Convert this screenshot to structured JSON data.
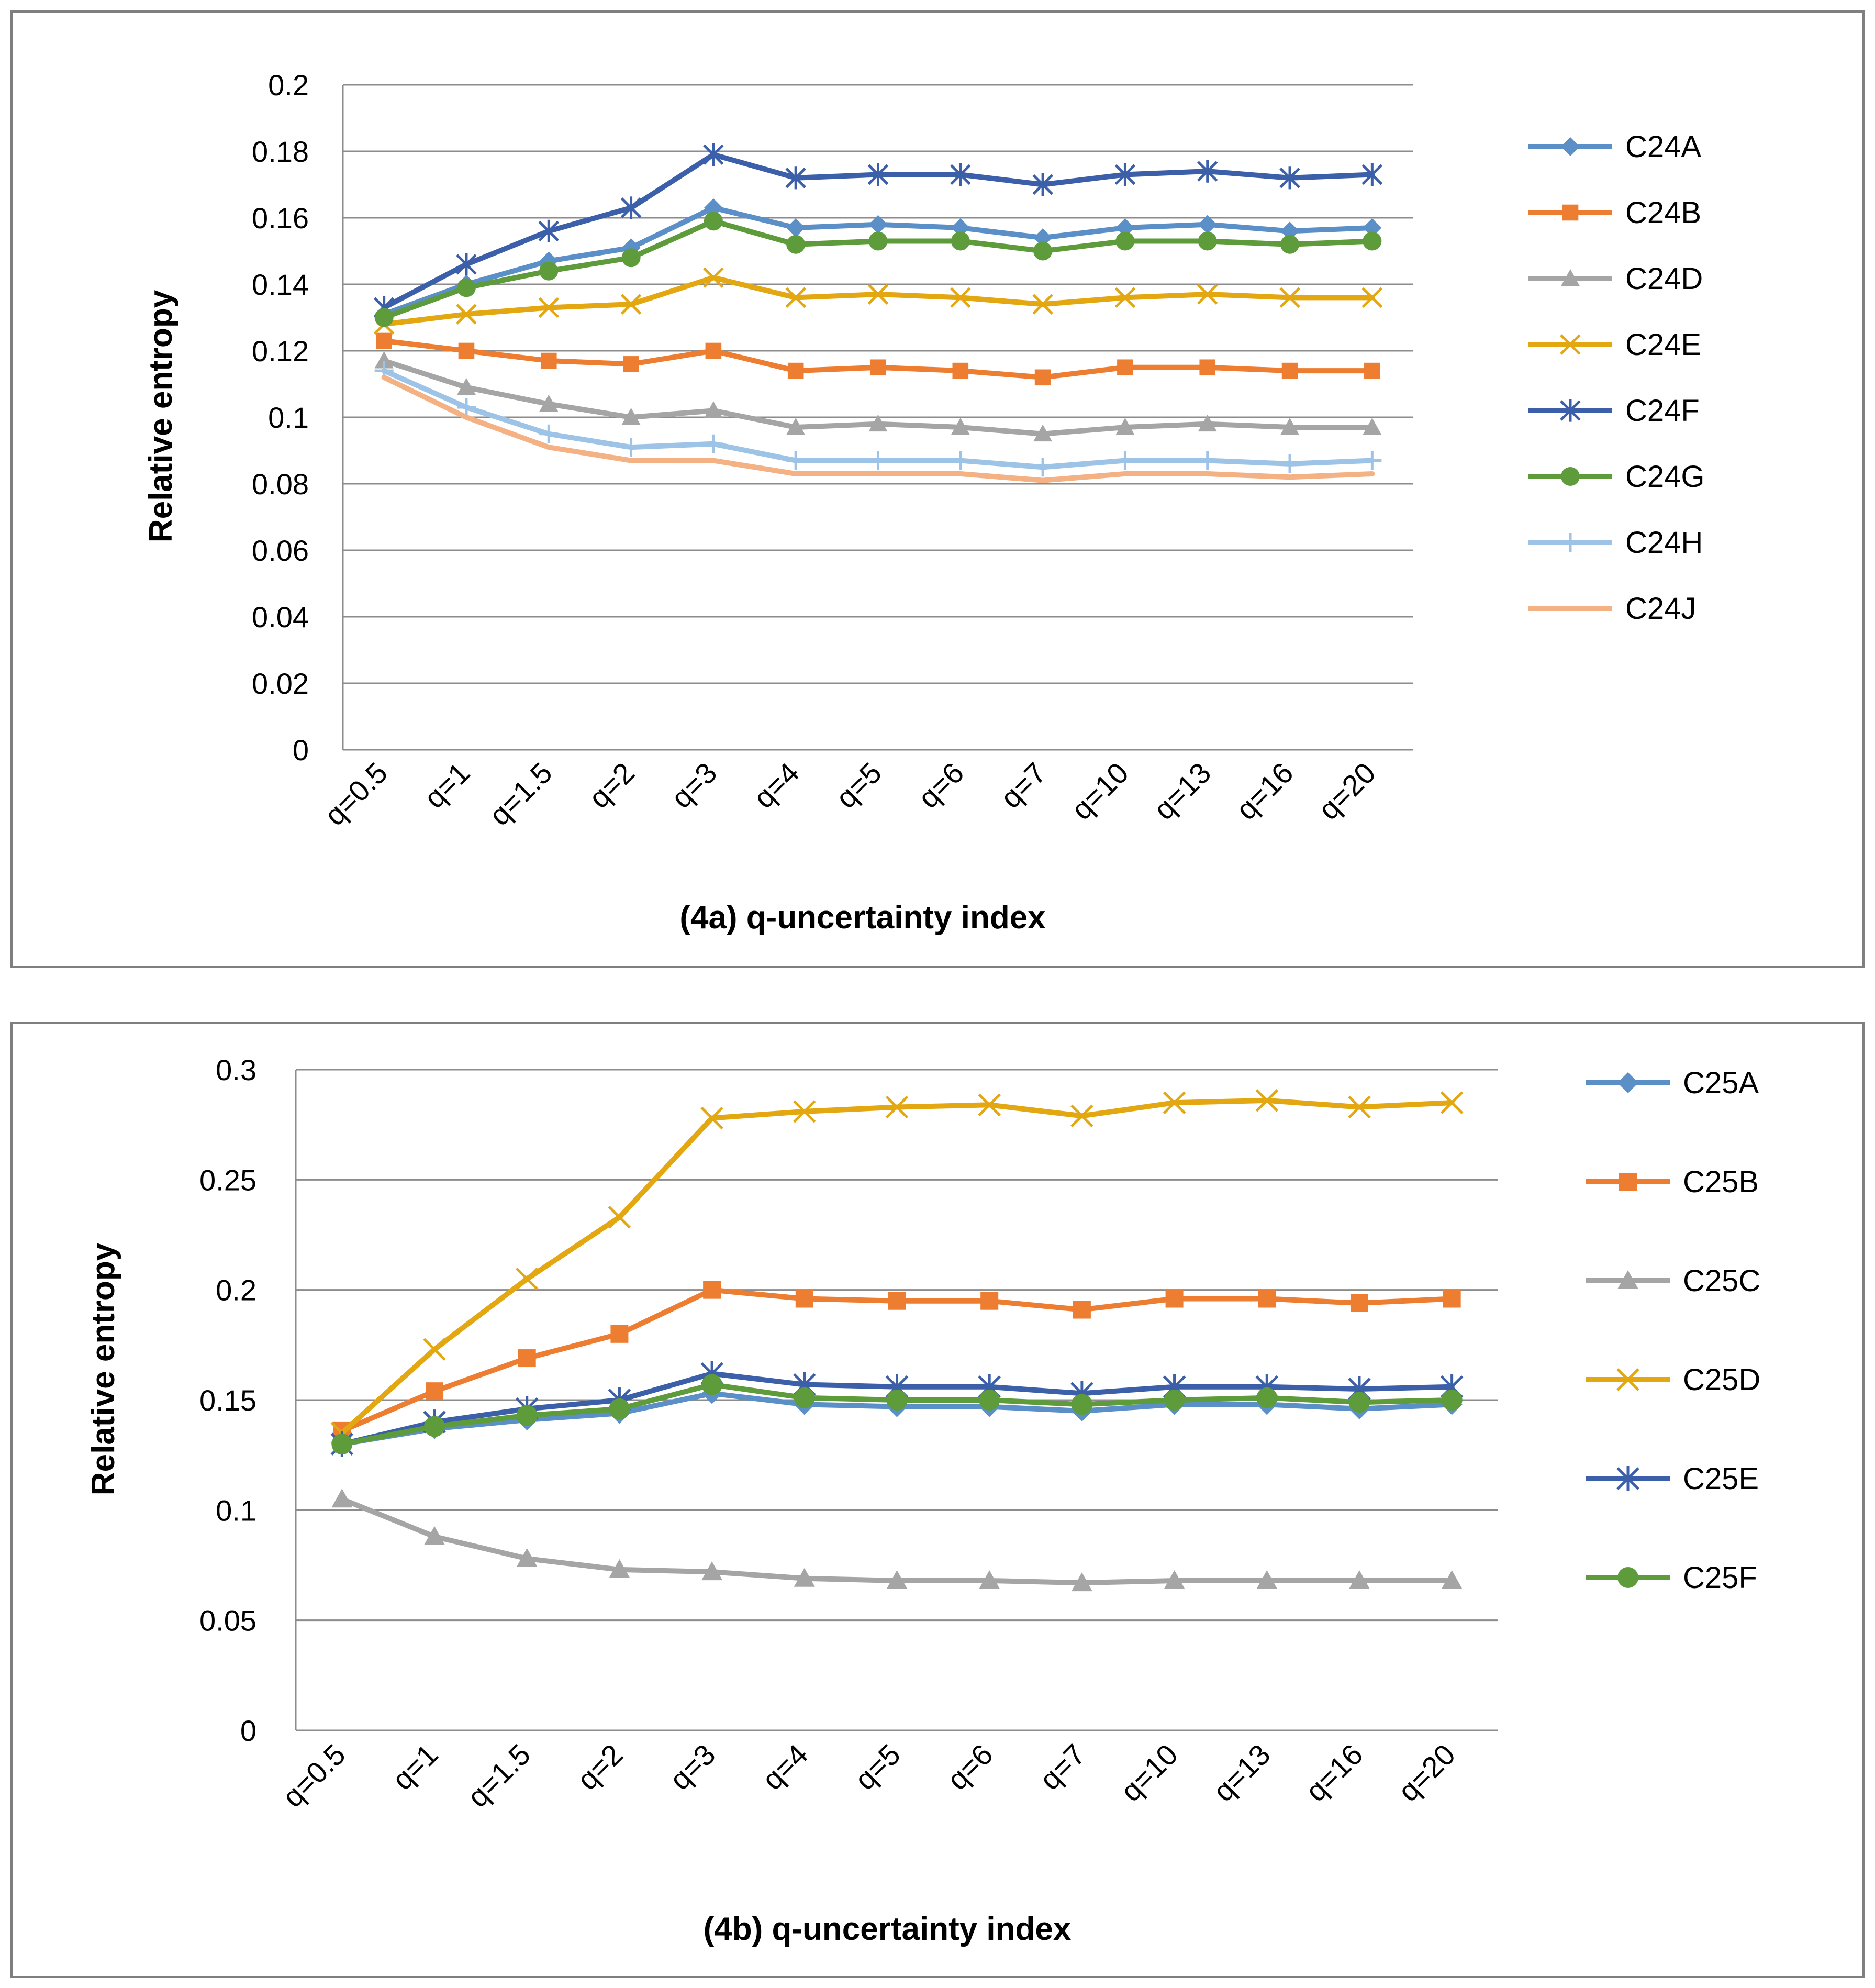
{
  "chart_data": [
    {
      "type": "line",
      "title": "",
      "xlabel": "(4a) q-uncertainty index",
      "ylabel": "Relative entropy",
      "ylim": [
        0,
        0.2
      ],
      "yticks": [
        "0",
        "0.02",
        "0.04",
        "0.06",
        "0.08",
        "0.1",
        "0.12",
        "0.14",
        "0.16",
        "0.18",
        "0.2"
      ],
      "ytick_values": [
        0,
        0.02,
        0.04,
        0.06,
        0.08,
        0.1,
        0.12,
        0.14,
        0.16,
        0.18,
        0.2
      ],
      "grid": true,
      "legend_position": "right",
      "categories": [
        "q=0.5",
        "q=1",
        "q=1.5",
        "q=2",
        "q=3",
        "q=4",
        "q=5",
        "q=6",
        "q=7",
        "q=10",
        "q=13",
        "q=16",
        "q=20"
      ],
      "series": [
        {
          "name": "C24A",
          "color": "#5B8FC7",
          "marker": "diamond",
          "values": [
            0.131,
            0.14,
            0.147,
            0.151,
            0.163,
            0.157,
            0.158,
            0.157,
            0.154,
            0.157,
            0.158,
            0.156,
            0.157
          ]
        },
        {
          "name": "C24B",
          "color": "#ED7D31",
          "marker": "square",
          "values": [
            0.123,
            0.12,
            0.117,
            0.116,
            0.12,
            0.114,
            0.115,
            0.114,
            0.112,
            0.115,
            0.115,
            0.114,
            0.114
          ]
        },
        {
          "name": "C24D",
          "color": "#A5A5A5",
          "marker": "triangle",
          "values": [
            0.117,
            0.109,
            0.104,
            0.1,
            0.102,
            0.097,
            0.098,
            0.097,
            0.095,
            0.097,
            0.098,
            0.097,
            0.097
          ]
        },
        {
          "name": "C24E",
          "color": "#E3A712",
          "marker": "x",
          "values": [
            0.128,
            0.131,
            0.133,
            0.134,
            0.142,
            0.136,
            0.137,
            0.136,
            0.134,
            0.136,
            0.137,
            0.136,
            0.136
          ]
        },
        {
          "name": "C24F",
          "color": "#3B5FA8",
          "marker": "star",
          "values": [
            0.133,
            0.146,
            0.156,
            0.163,
            0.179,
            0.172,
            0.173,
            0.173,
            0.17,
            0.173,
            0.174,
            0.172,
            0.173
          ]
        },
        {
          "name": "C24G",
          "color": "#5E9B3A",
          "marker": "circle",
          "values": [
            0.13,
            0.139,
            0.144,
            0.148,
            0.159,
            0.152,
            0.153,
            0.153,
            0.15,
            0.153,
            0.153,
            0.152,
            0.153
          ]
        },
        {
          "name": "C24H",
          "color": "#9DC3E6",
          "marker": "plus",
          "values": [
            0.114,
            0.103,
            0.095,
            0.091,
            0.092,
            0.087,
            0.087,
            0.087,
            0.085,
            0.087,
            0.087,
            0.086,
            0.087
          ]
        },
        {
          "name": "C24J",
          "color": "#F4B183",
          "marker": "none",
          "values": [
            0.112,
            0.1,
            0.091,
            0.087,
            0.087,
            0.083,
            0.083,
            0.083,
            0.081,
            0.083,
            0.083,
            0.082,
            0.083
          ]
        }
      ]
    },
    {
      "type": "line",
      "title": "",
      "xlabel": "(4b) q-uncertainty index",
      "ylabel": "Relative entropy",
      "ylim": [
        0,
        0.3
      ],
      "yticks": [
        "0",
        "0.05",
        "0.1",
        "0.15",
        "0.2",
        "0.25",
        "0.3"
      ],
      "ytick_values": [
        0,
        0.05,
        0.1,
        0.15,
        0.2,
        0.25,
        0.3
      ],
      "grid": true,
      "legend_position": "right",
      "categories": [
        "q=0.5",
        "q=1",
        "q=1.5",
        "q=2",
        "q=3",
        "q=4",
        "q=5",
        "q=6",
        "q=7",
        "q=10",
        "q=13",
        "q=16",
        "q=20"
      ],
      "series": [
        {
          "name": "C25A",
          "color": "#5B8FC7",
          "marker": "diamond",
          "values": [
            0.13,
            0.137,
            0.141,
            0.144,
            0.153,
            0.148,
            0.147,
            0.147,
            0.145,
            0.148,
            0.148,
            0.146,
            0.148
          ]
        },
        {
          "name": "C25B",
          "color": "#ED7D31",
          "marker": "square",
          "values": [
            0.136,
            0.154,
            0.169,
            0.18,
            0.2,
            0.196,
            0.195,
            0.195,
            0.191,
            0.196,
            0.196,
            0.194,
            0.196
          ]
        },
        {
          "name": "C25C",
          "color": "#A5A5A5",
          "marker": "triangle",
          "values": [
            0.105,
            0.088,
            0.078,
            0.073,
            0.072,
            0.069,
            0.068,
            0.068,
            0.067,
            0.068,
            0.068,
            0.068,
            0.068
          ]
        },
        {
          "name": "C25D",
          "color": "#E3A712",
          "marker": "x",
          "values": [
            0.135,
            0.173,
            0.205,
            0.233,
            0.278,
            0.281,
            0.283,
            0.284,
            0.279,
            0.285,
            0.286,
            0.283,
            0.285
          ]
        },
        {
          "name": "C25E",
          "color": "#3B5FA8",
          "marker": "star",
          "values": [
            0.13,
            0.14,
            0.146,
            0.15,
            0.162,
            0.157,
            0.156,
            0.156,
            0.153,
            0.156,
            0.156,
            0.155,
            0.156
          ]
        },
        {
          "name": "C25F",
          "color": "#5E9B3A",
          "marker": "circle",
          "values": [
            0.13,
            0.138,
            0.143,
            0.146,
            0.157,
            0.151,
            0.15,
            0.15,
            0.148,
            0.15,
            0.151,
            0.149,
            0.15
          ]
        }
      ]
    }
  ]
}
